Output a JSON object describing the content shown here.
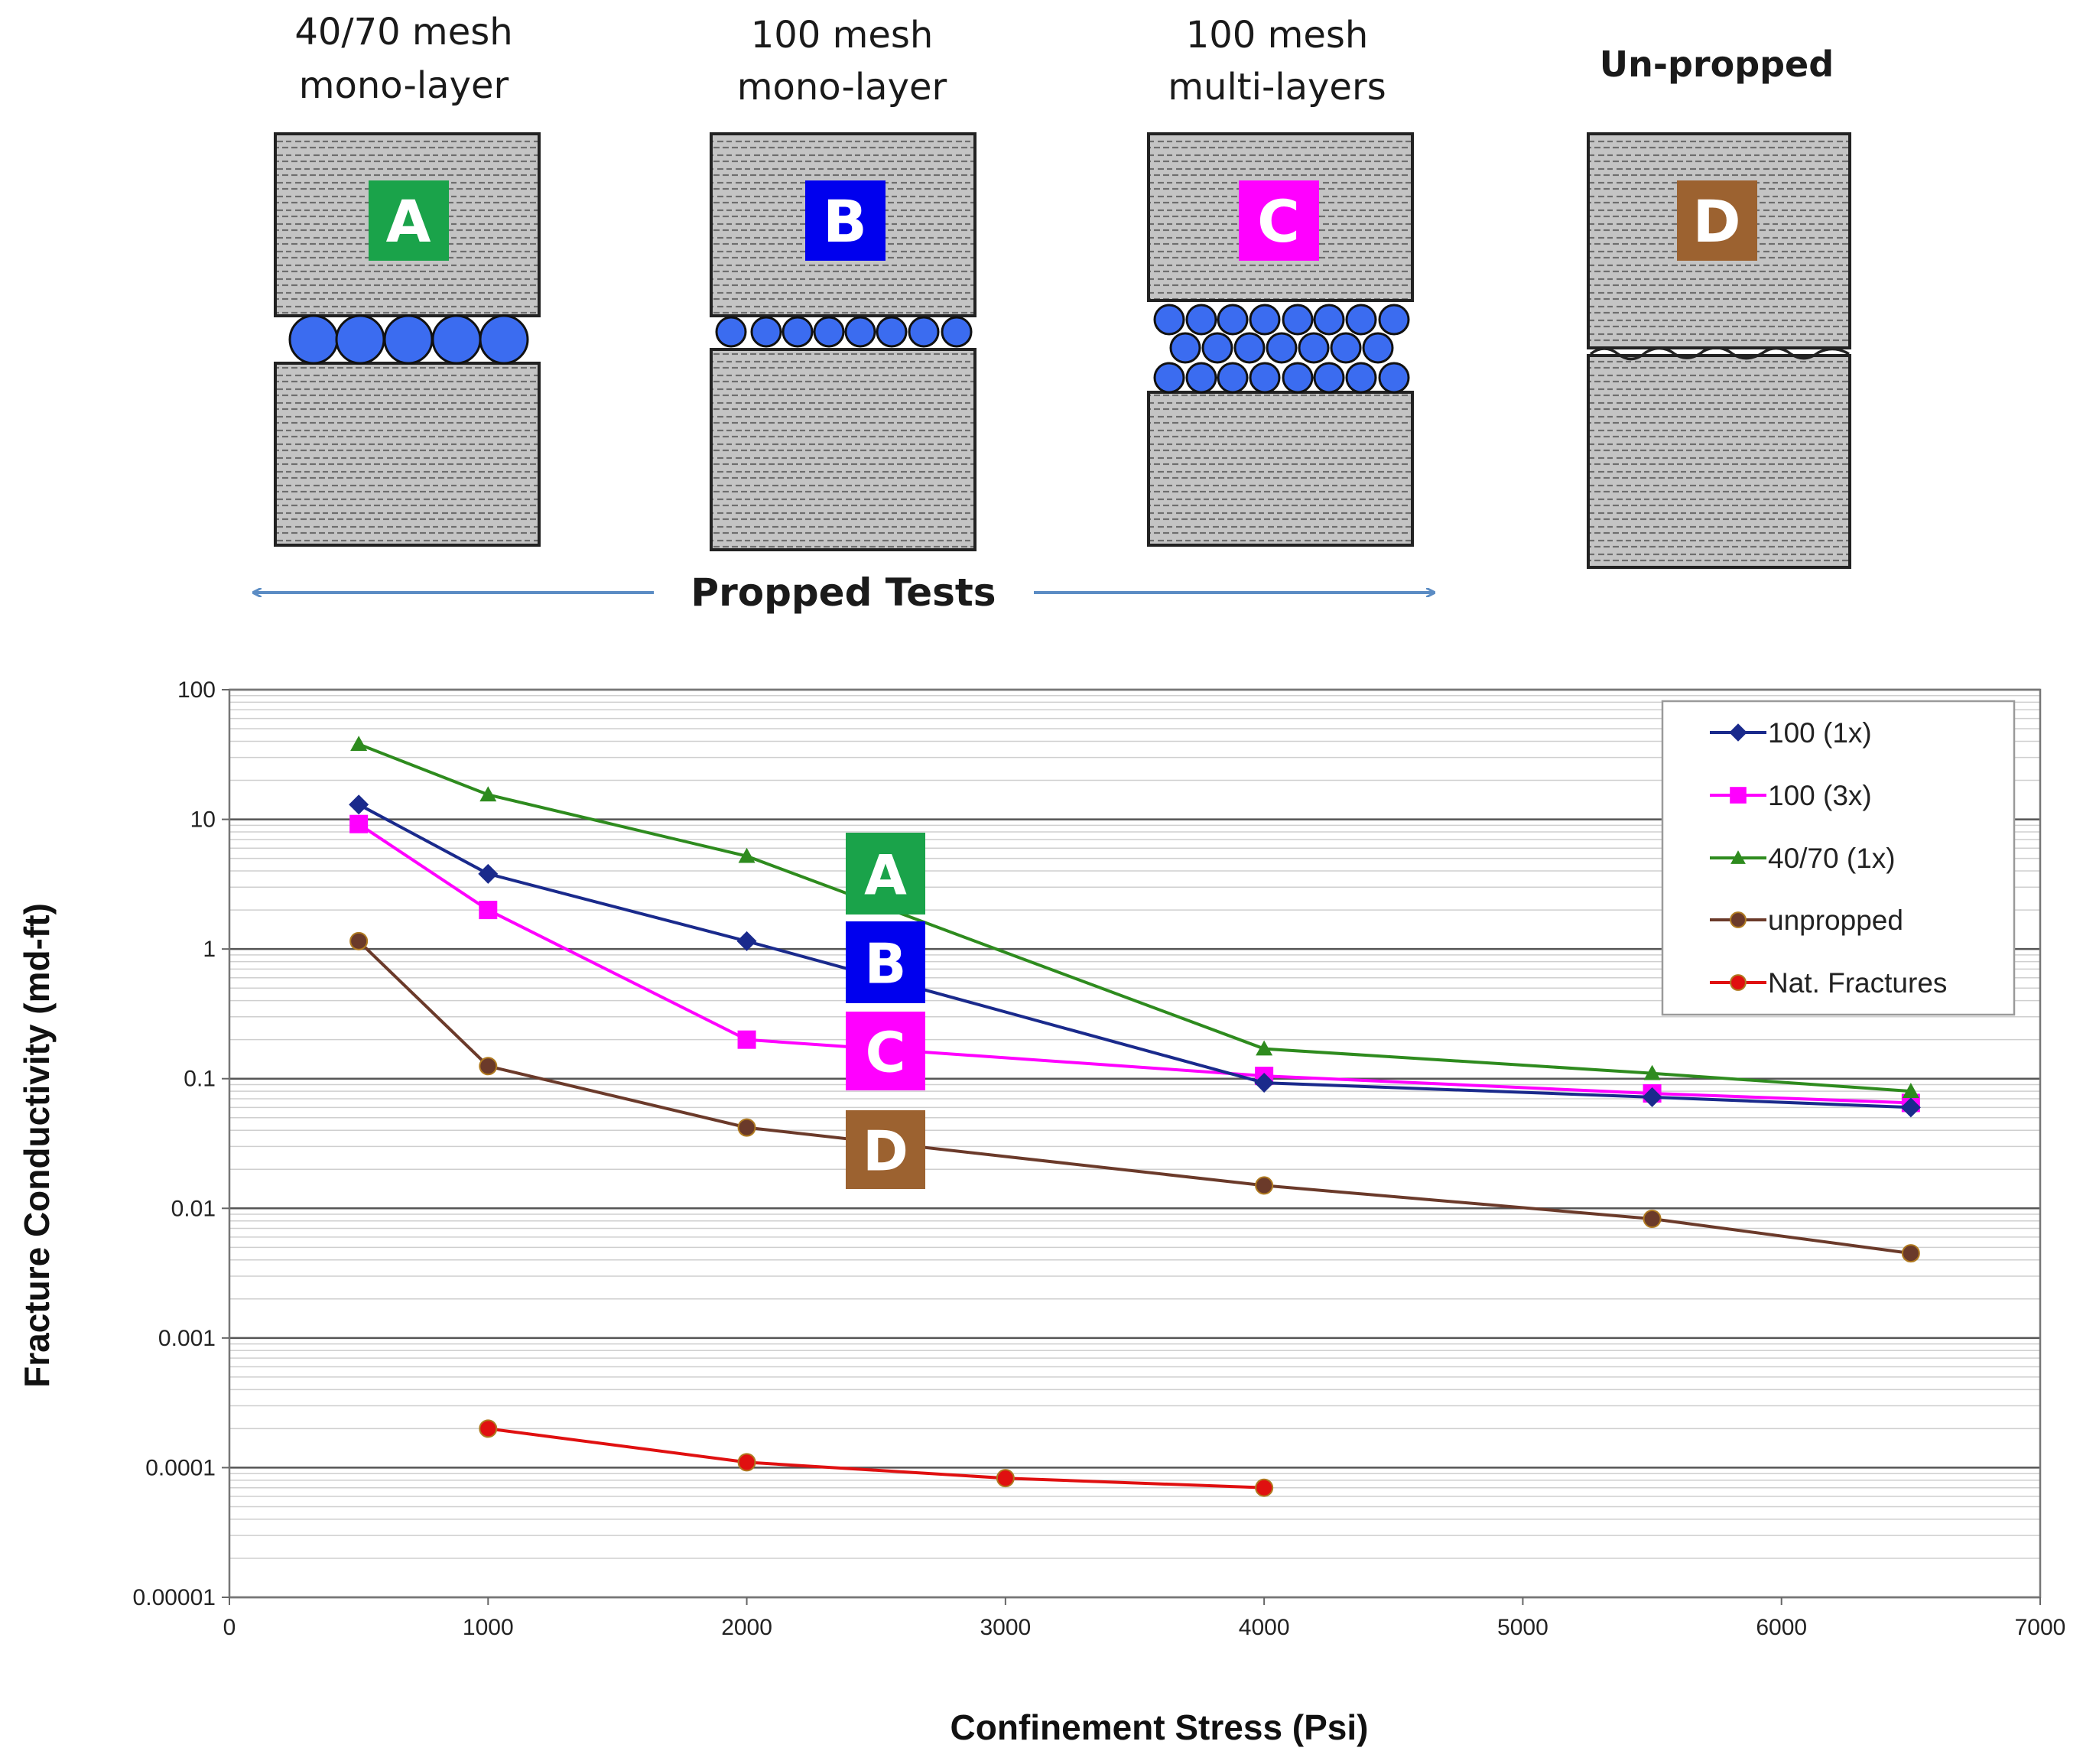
{
  "schematic": {
    "panels": [
      {
        "id": "A",
        "caption_line1": "40/70 mesh",
        "caption_line2": "mono-layer",
        "color": "#1aa34a"
      },
      {
        "id": "B",
        "caption_line1": "100 mesh",
        "caption_line2": "mono-layer",
        "color": "#0000ee"
      },
      {
        "id": "C",
        "caption_line1": "100 mesh",
        "caption_line2": "multi-layers",
        "color": "#ff00ff"
      },
      {
        "id": "D",
        "caption_line1": "Un-propped",
        "caption_line2": "",
        "color": "#9c6230"
      }
    ],
    "propped_label": "Propped Tests",
    "arrow_color": "#5b8cc4",
    "proppant_color": "#3b6cf0"
  },
  "chart_data": {
    "type": "line",
    "xlabel": "Confinement Stress (Psi)",
    "ylabel": "Fracture Conductivity (md-ft)",
    "xlim": [
      0,
      7000
    ],
    "ylim": [
      1e-05,
      100
    ],
    "yscale": "log",
    "x_ticks": [
      "0",
      "1000",
      "2000",
      "3000",
      "4000",
      "5000",
      "6000",
      "7000"
    ],
    "y_ticks": [
      "100",
      "10",
      "1",
      "0.1",
      "0.01",
      "0.001",
      "0.0001",
      "0.00001"
    ],
    "grid": true,
    "legend_position": "top-right",
    "series": [
      {
        "name": "100 (1x)",
        "color": "#1a2a8c",
        "marker": "diamond",
        "x": [
          500,
          1000,
          2000,
          4000,
          5500,
          6500
        ],
        "y": [
          13,
          3.8,
          1.15,
          0.093,
          0.072,
          0.06
        ]
      },
      {
        "name": "100 (3x)",
        "color": "#ff00ff",
        "marker": "square",
        "x": [
          500,
          1000,
          2000,
          4000,
          5500,
          6500
        ],
        "y": [
          9.2,
          2.0,
          0.2,
          0.105,
          0.077,
          0.065
        ]
      },
      {
        "name": "40/70 (1x)",
        "color": "#2e8b1e",
        "marker": "triangle",
        "x": [
          500,
          1000,
          2000,
          4000,
          5500,
          6500
        ],
        "y": [
          38,
          15.5,
          5.2,
          0.17,
          0.11,
          0.08
        ]
      },
      {
        "name": "unpropped",
        "color": "#6b3a2a",
        "marker": "circle",
        "x": [
          500,
          1000,
          2000,
          4000,
          5500,
          6500
        ],
        "y": [
          1.15,
          0.125,
          0.042,
          0.015,
          0.0083,
          0.0045
        ]
      },
      {
        "name": "Nat. Fractures",
        "color": "#e01010",
        "marker": "circle",
        "x": [
          1000,
          2000,
          3000,
          4000
        ],
        "y": [
          0.0002,
          0.00011,
          8.3e-05,
          7e-05
        ]
      }
    ],
    "annotations": [
      {
        "label": "A",
        "color": "#1aa34a"
      },
      {
        "label": "B",
        "color": "#0000ee"
      },
      {
        "label": "C",
        "color": "#ff00ff"
      },
      {
        "label": "D",
        "color": "#9c6230"
      }
    ]
  }
}
